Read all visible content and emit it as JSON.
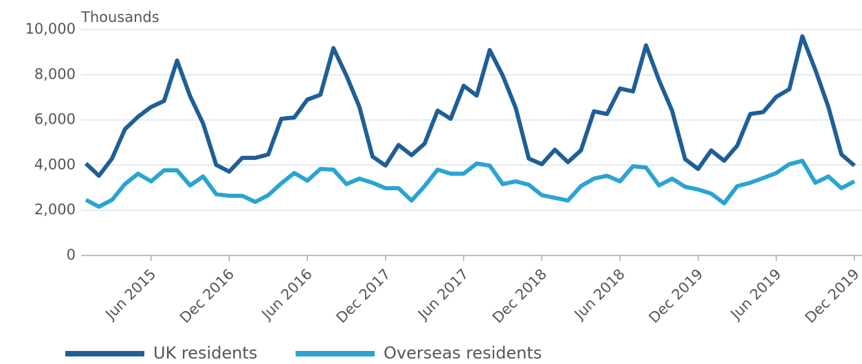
{
  "chart_data": {
    "type": "line",
    "y_axis_label": "Thousands",
    "categories": [
      null,
      null,
      null,
      null,
      null,
      "Jun 2015",
      null,
      null,
      null,
      null,
      null,
      "Dec 2016",
      null,
      null,
      null,
      null,
      null,
      "Jun 2016",
      null,
      null,
      null,
      null,
      null,
      "Dec 2017",
      null,
      null,
      null,
      null,
      null,
      "Jun 2017",
      null,
      null,
      null,
      null,
      null,
      "Dec 2018",
      null,
      null,
      null,
      null,
      null,
      "Jun 2018",
      null,
      null,
      null,
      null,
      null,
      "Dec 2019",
      null,
      null,
      null,
      null,
      null,
      "Jun 2019",
      null,
      null,
      null,
      null,
      null,
      "Dec 2019"
    ],
    "series": [
      {
        "name": "UK residents",
        "color": "#1f5f95",
        "values": [
          4070,
          3530,
          4290,
          5590,
          6140,
          6570,
          6840,
          8630,
          7050,
          5840,
          4010,
          3710,
          4320,
          4320,
          4470,
          6050,
          6110,
          6900,
          7110,
          9180,
          7960,
          6570,
          4380,
          3980,
          4890,
          4440,
          4950,
          6410,
          6050,
          7510,
          7080,
          9090,
          7960,
          6530,
          4290,
          4040,
          4680,
          4130,
          4650,
          6380,
          6260,
          7390,
          7260,
          9300,
          7750,
          6410,
          4260,
          3830,
          4650,
          4190,
          4860,
          6260,
          6350,
          7020,
          7360,
          9700,
          8210,
          6570,
          4470,
          3980
        ]
      },
      {
        "name": "Overseas residents",
        "color": "#2aa4d2",
        "values": [
          2460,
          2160,
          2460,
          3160,
          3620,
          3280,
          3770,
          3770,
          3100,
          3500,
          2710,
          2640,
          2640,
          2370,
          2670,
          3190,
          3650,
          3310,
          3830,
          3800,
          3160,
          3400,
          3220,
          2980,
          2980,
          2430,
          3070,
          3800,
          3620,
          3620,
          4070,
          3980,
          3160,
          3280,
          3130,
          2670,
          2550,
          2430,
          3070,
          3400,
          3530,
          3280,
          3950,
          3890,
          3100,
          3400,
          3040,
          2920,
          2740,
          2310,
          3070,
          3220,
          3430,
          3650,
          4040,
          4190,
          3220,
          3500,
          2980,
          3280
        ]
      }
    ],
    "ylim": [
      0,
      10000
    ],
    "yticks": [
      0,
      {
        "value": 2000,
        "label": "2,000"
      },
      {
        "value": 4000,
        "label": "4,000"
      },
      {
        "value": 6000,
        "label": "6,000"
      },
      {
        "value": 8000,
        "label": "8,000"
      },
      {
        "value": 10000,
        "label": "10,000"
      }
    ],
    "grid": true
  }
}
